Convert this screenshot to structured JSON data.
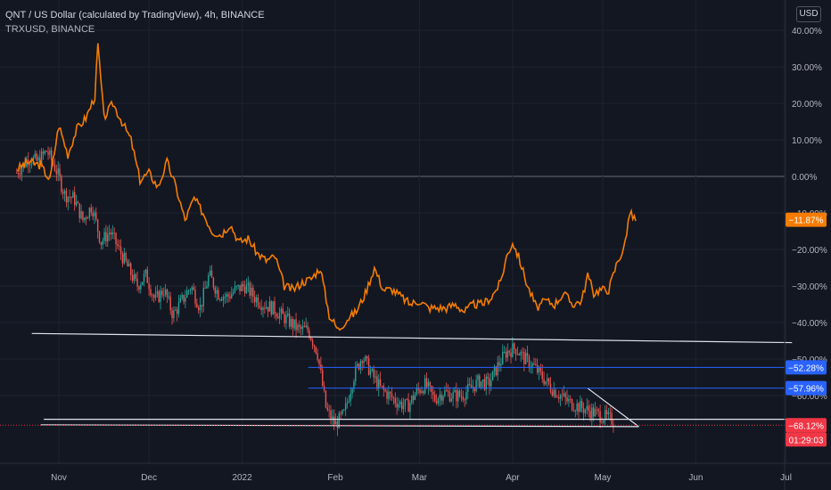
{
  "header": {
    "title": "QNT / US Dollar (calculated by TradingView), 4h, BINANCE",
    "comparison": "TRXUSD, BINANCE",
    "currency_button": "USD"
  },
  "colors": {
    "background": "#131722",
    "grid": "#1f2330",
    "axis_text": "#b2b5be",
    "up_candle": "#26a69a",
    "down_candle": "#ef5350",
    "compare_line": "#f57c00",
    "trendline": "#e0e3eb",
    "level_line": "#2962ff",
    "label_blue": "#2962ff",
    "label_red": "#f23645",
    "label_orange": "#f57c00"
  },
  "chart_data": {
    "type": "line",
    "scale": "percent",
    "ylim": [
      -74,
      44
    ],
    "y_ticks": [
      "40.00%",
      "30.00%",
      "20.00%",
      "10.00%",
      "0.00%",
      "−10.00%",
      "−20.00%",
      "−30.00%",
      "−40.00%",
      "−50.00%",
      "−60.00%"
    ],
    "y_tick_values": [
      40,
      30,
      20,
      10,
      0,
      -10,
      -20,
      -30,
      -40,
      -50,
      -60
    ],
    "x_ticks": [
      {
        "label": "Nov",
        "day": 0
      },
      {
        "label": "Dec",
        "day": 30
      },
      {
        "label": "2022",
        "day": 61
      },
      {
        "label": "Feb",
        "day": 92
      },
      {
        "label": "Mar",
        "day": 120
      },
      {
        "label": "Apr",
        "day": 151
      },
      {
        "label": "May",
        "day": 181
      },
      {
        "label": "Jun",
        "day": 212
      },
      {
        "label": "Jul",
        "day": 242
      }
    ],
    "xlim_days": [
      -14,
      244
    ],
    "series": [
      {
        "name": "QNT / US Dollar",
        "style": "candles",
        "days": [
          -14,
          -10,
          -7,
          -4,
          -1,
          2,
          5,
          8,
          11,
          14,
          17,
          20,
          23,
          26,
          29,
          32,
          35,
          38,
          41,
          44,
          47,
          50,
          53,
          56,
          59,
          62,
          65,
          68,
          71,
          74,
          77,
          80,
          83,
          86,
          89,
          92,
          95,
          98,
          101,
          104,
          107,
          110,
          113,
          116,
          119,
          122,
          125,
          128,
          131,
          134,
          137,
          140,
          143,
          146,
          149,
          152,
          155,
          158,
          161,
          164,
          167,
          170,
          173,
          176,
          179,
          182,
          185
        ],
        "values": [
          1,
          5,
          4,
          7,
          2,
          -5,
          -6,
          -12,
          -8,
          -18,
          -15,
          -20,
          -25,
          -30,
          -27,
          -34,
          -31,
          -38,
          -34,
          -30,
          -36,
          -27,
          -32,
          -33,
          -31,
          -30,
          -33,
          -35,
          -36,
          -38,
          -40,
          -42,
          -42,
          -48,
          -64,
          -68,
          -65,
          -55,
          -49,
          -54,
          -58,
          -60,
          -62,
          -63,
          -59,
          -57,
          -61,
          -59,
          -60,
          -60,
          -58,
          -56,
          -57,
          -52,
          -48,
          -47,
          -50,
          -52,
          -55,
          -58,
          -60,
          -62,
          -63,
          -64,
          -65,
          -66,
          -67
        ]
      },
      {
        "name": "TRXUSD, BINANCE",
        "style": "line",
        "days": [
          -14,
          -10,
          -6,
          -3,
          0,
          3,
          6,
          9,
          12,
          13,
          15,
          18,
          21,
          24,
          27,
          30,
          33,
          36,
          39,
          42,
          45,
          48,
          51,
          54,
          57,
          60,
          63,
          66,
          69,
          72,
          75,
          78,
          81,
          84,
          87,
          90,
          93,
          96,
          99,
          102,
          105,
          108,
          111,
          114,
          117,
          120,
          123,
          126,
          129,
          132,
          135,
          138,
          141,
          144,
          147,
          149,
          151,
          153,
          156,
          159,
          162,
          165,
          168,
          171,
          174,
          176,
          178,
          180,
          183,
          186,
          188,
          190,
          192
        ],
        "values": [
          2,
          4,
          3,
          -1,
          14,
          6,
          13,
          16,
          22,
          36,
          16,
          20,
          15,
          10,
          -1,
          1,
          -3,
          4,
          -3,
          -12,
          -6,
          -10,
          -15,
          -16,
          -13,
          -18,
          -17,
          -21,
          -23,
          -22,
          -30,
          -31,
          -29,
          -28,
          -25,
          -38,
          -42,
          -39,
          -37,
          -32,
          -25,
          -31,
          -31,
          -33,
          -35,
          -34,
          -36,
          -36,
          -36,
          -35,
          -37,
          -35,
          -35,
          -33,
          -29,
          -22,
          -18,
          -22,
          -30,
          -36,
          -34,
          -35,
          -32,
          -35,
          -34,
          -27,
          -32,
          -31,
          -31,
          -23,
          -20,
          -10,
          -12
        ]
      }
    ],
    "trendlines": [
      {
        "from": [
          -9,
          -43
        ],
        "to": [
          244,
          -45.5
        ]
      },
      {
        "from": [
          -5,
          -66.5
        ],
        "to": [
          244,
          -66.5
        ]
      },
      {
        "from": [
          -6,
          -68
        ],
        "to": [
          193,
          -68.5
        ]
      },
      {
        "from": [
          176,
          -58
        ],
        "to": [
          193,
          -68.5
        ]
      }
    ],
    "horizontal_levels": [
      {
        "value": -52.28,
        "from_day": 83
      },
      {
        "value": -57.96,
        "from_day": 83
      }
    ],
    "price_labels": [
      {
        "text": "−11.87%",
        "value": -11.87,
        "kind": "orange"
      },
      {
        "text": "−52.28%",
        "value": -52.28,
        "kind": "blue"
      },
      {
        "text": "−57.96%",
        "value": -57.96,
        "kind": "blue"
      },
      {
        "text": "−68.12%",
        "value": -68.12,
        "kind": "red"
      }
    ],
    "countdown": "01:29:03"
  }
}
